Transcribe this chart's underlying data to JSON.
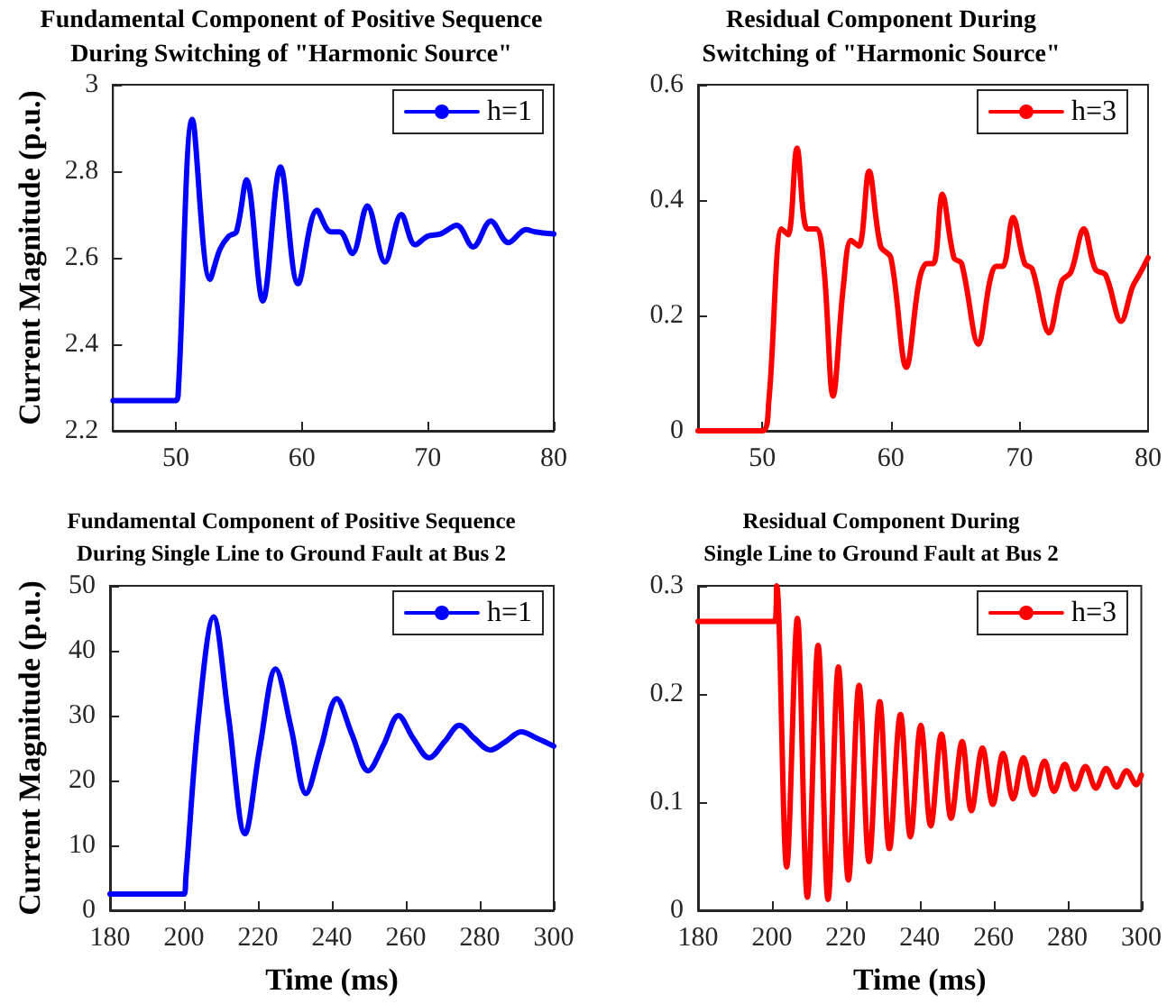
{
  "chart_data": [
    {
      "type": "line",
      "title": "Fundamental Component of Positive Sequence\nDuring Switching of \"Harmonic Source\"",
      "ylabel": "Current Magnitude (p.u.)",
      "xlim": [
        45,
        80
      ],
      "xticks": [
        50,
        60,
        70,
        80
      ],
      "ylim": [
        2.2,
        3
      ],
      "yticks": [
        2.2,
        2.4,
        2.6,
        2.8,
        3
      ],
      "grid": false,
      "legend": "top right",
      "marker": "none",
      "line_style": "solid",
      "x": [
        45,
        50,
        50.2,
        51.3,
        52.7,
        53.5,
        54.2,
        54.8,
        55.6,
        56.9,
        58.3,
        59.7,
        61.2,
        62.3,
        63,
        64,
        65.2,
        66.6,
        67.9,
        69,
        70,
        71,
        72.3,
        73.6,
        75,
        76.4,
        77.8,
        78.5,
        80
      ],
      "series": [
        {
          "name": "h=1",
          "color": "#0000ff",
          "values": [
            2.27,
            2.27,
            2.3,
            2.92,
            2.55,
            2.62,
            2.65,
            2.66,
            2.78,
            2.5,
            2.81,
            2.54,
            2.71,
            2.66,
            2.66,
            2.61,
            2.72,
            2.59,
            2.7,
            2.63,
            2.65,
            2.655,
            2.675,
            2.625,
            2.685,
            2.635,
            2.665,
            2.66,
            2.655
          ]
        }
      ]
    },
    {
      "type": "line",
      "title": "Residual Component During\nSwitching of \"Harmonic Source\"",
      "xlim": [
        45,
        80
      ],
      "xticks": [
        50,
        60,
        70,
        80
      ],
      "ylim": [
        0,
        0.6
      ],
      "yticks": [
        0,
        0.2,
        0.4,
        0.6
      ],
      "grid": false,
      "legend": "top right",
      "marker": "none",
      "line_style": "solid",
      "x": [
        45,
        50,
        50.5,
        51.5,
        52,
        52.7,
        53.5,
        54.2,
        54.8,
        55.5,
        56.3,
        56.9,
        57.5,
        58.3,
        59.2,
        60,
        61.2,
        62.2,
        62.8,
        63.3,
        64,
        64.9,
        65.5,
        66.8,
        67.7,
        68.2,
        68.7,
        69.5,
        70.4,
        71,
        72.3,
        73.3,
        74,
        75,
        75.9,
        76.7,
        77.9,
        78.8,
        79.3,
        80
      ],
      "series": [
        {
          "name": "h=3",
          "color": "#ff0000",
          "values": [
            0,
            0,
            0.05,
            0.35,
            0.34,
            0.49,
            0.35,
            0.35,
            0.28,
            0.06,
            0.25,
            0.33,
            0.32,
            0.45,
            0.32,
            0.3,
            0.11,
            0.26,
            0.29,
            0.29,
            0.41,
            0.3,
            0.29,
            0.15,
            0.26,
            0.285,
            0.285,
            0.37,
            0.29,
            0.28,
            0.17,
            0.26,
            0.275,
            0.35,
            0.28,
            0.27,
            0.19,
            0.25,
            0.27,
            0.3
          ]
        }
      ]
    },
    {
      "type": "line",
      "title": "Fundamental Component of Positive Sequence\nDuring Single Line to Ground Fault at Bus 2",
      "xlabel": "Time (ms)",
      "ylabel": "Current Magnitude (p.u.)",
      "xlim": [
        180,
        300
      ],
      "xticks": [
        180,
        200,
        220,
        240,
        260,
        280,
        300
      ],
      "ylim": [
        0,
        50
      ],
      "yticks": [
        0,
        10,
        20,
        30,
        40,
        50
      ],
      "grid": false,
      "legend": "top right",
      "marker": "none",
      "line_style": "solid",
      "x": [
        180,
        200,
        200.5,
        204,
        208,
        212,
        216.5,
        220.5,
        224.8,
        229,
        233,
        237,
        241.3,
        245.5,
        249.8,
        254,
        258,
        262,
        266.3,
        270.5,
        274.5,
        278.5,
        282.8,
        287,
        291.2,
        295.5,
        300
      ],
      "series": [
        {
          "name": "h=1",
          "color": "#0000ff",
          "values": [
            2.5,
            2.5,
            5,
            30,
            45.2,
            30,
            11.8,
            25,
            37.2,
            28,
            18,
            25,
            32.6,
            27,
            21.5,
            25.5,
            30,
            26.5,
            23.5,
            26,
            28.5,
            26.5,
            24.7,
            26,
            27.5,
            26.5,
            25.3
          ]
        }
      ]
    },
    {
      "type": "line",
      "title": "Residual Component During\nSingle Line to Ground Fault at Bus 2",
      "xlabel": "Time (ms)",
      "xlim": [
        180,
        300
      ],
      "xticks": [
        180,
        200,
        220,
        240,
        260,
        280,
        300
      ],
      "ylim": [
        0,
        0.3
      ],
      "yticks": [
        0,
        0.1,
        0.2,
        0.3
      ],
      "grid": false,
      "legend": "top right",
      "marker": "none",
      "line_style": "solid",
      "x": [
        180,
        200.8,
        201.3,
        204,
        206.9,
        209.6,
        212.5,
        215.2,
        218,
        220.7,
        223.6,
        226.3,
        229.2,
        231.8,
        234.8,
        237.5,
        240.3,
        243,
        245.9,
        248.5,
        251.5,
        254,
        257,
        259.8,
        262.6,
        265.3,
        268.1,
        270.9,
        273.8,
        276.4,
        279.3,
        282,
        284.9,
        287.7,
        290.5,
        293.3,
        296,
        298.7,
        300
      ],
      "series": [
        {
          "name": "h=3",
          "color": "#ff0000",
          "values": [
            0.267,
            0.267,
            0.3,
            0.04,
            0.27,
            0.012,
            0.245,
            0.01,
            0.225,
            0.028,
            0.208,
            0.045,
            0.193,
            0.057,
            0.181,
            0.068,
            0.171,
            0.078,
            0.163,
            0.085,
            0.156,
            0.092,
            0.15,
            0.098,
            0.145,
            0.103,
            0.141,
            0.107,
            0.138,
            0.11,
            0.135,
            0.112,
            0.133,
            0.113,
            0.131,
            0.114,
            0.129,
            0.116,
            0.125
          ]
        }
      ]
    }
  ]
}
